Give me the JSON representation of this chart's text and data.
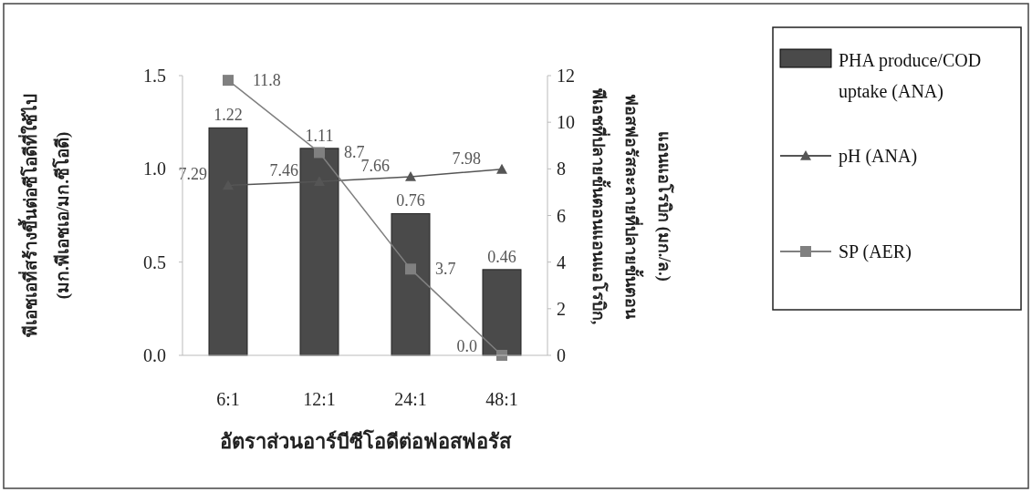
{
  "chart_data": {
    "type": "bar",
    "xlabel": "อัตราส่วนอาร์บีซีโอดีต่อฟอสฟอรัส",
    "ylabel": "พีเอชเอที่สร้างขึ้นต่อซีโอดีที่ใช้ไป\n(มก.พีเอชเอ/มก.ซีโอดี)",
    "y2label": "พีเอชที่ปลายขั้นตอนแอนแอโรบิก,\nฟอสฟอรัสละลายที่ปลายขั้นตอน\nแอนแอโรบิก (มก./ล.)",
    "categories": [
      "6:1",
      "12:1",
      "24:1",
      "48:1"
    ],
    "series": [
      {
        "name": "PHA produce/COD uptake (ANA)",
        "color": "#4a4a4a",
        "values": [
          1.22,
          1.11,
          0.76,
          0.46
        ]
      },
      {
        "name": "pH (ANA)",
        "type": "line",
        "axis": "y2",
        "marker": "triangle",
        "color": "#555555",
        "values": [
          7.29,
          7.46,
          7.66,
          7.98
        ]
      },
      {
        "name": "SP (AER)",
        "type": "line",
        "axis": "y2",
        "marker": "square",
        "color": "#808080",
        "values": [
          11.8,
          8.7,
          3.7,
          0.0
        ],
        "value_labels": [
          "11.8",
          "8.7",
          "3.7",
          "0.0"
        ]
      }
    ],
    "data_labels": true,
    "ylim": [
      0,
      1.5
    ],
    "yticks": [
      {
        "value": 0,
        "label": "0.0"
      },
      0.5,
      {
        "value": 1,
        "label": "1.0"
      },
      1.5
    ],
    "y2lim": [
      0,
      12
    ],
    "y2ticks": [
      0,
      2,
      4,
      6,
      8,
      10,
      12
    ],
    "legend": "right",
    "grid": false
  }
}
